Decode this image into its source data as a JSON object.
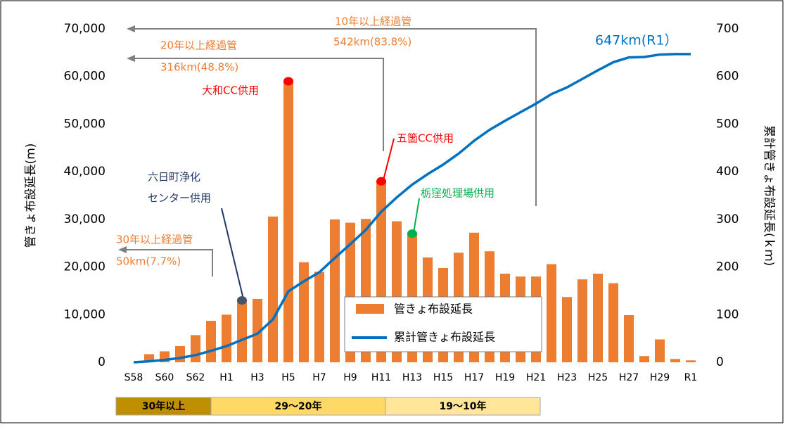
{
  "chart_data": {
    "type": "bar-line",
    "categories": [
      "S58",
      null,
      "S60",
      null,
      "S62",
      null,
      "H1",
      null,
      "H3",
      null,
      "H5",
      null,
      "H7",
      null,
      "H9",
      null,
      "H11",
      null,
      "H13",
      null,
      "H15",
      null,
      "H17",
      null,
      "H19",
      null,
      "H21",
      null,
      "H23",
      null,
      "H25",
      null,
      "H27",
      null,
      "H29",
      null,
      "R1"
    ],
    "series": [
      {
        "name": "管きょ布設延長",
        "color": "#ed7d31",
        "type": "bar",
        "values": [
          0,
          1700,
          2300,
          3400,
          5700,
          8700,
          10000,
          13000,
          13300,
          30600,
          59000,
          21000,
          19000,
          30000,
          29300,
          30100,
          38000,
          29600,
          27000,
          22000,
          19800,
          23000,
          27200,
          23300,
          18600,
          18000,
          18000,
          20600,
          13700,
          17400,
          18600,
          16600,
          9900,
          1300,
          4800,
          700,
          400
        ]
      },
      {
        "name": "累計管きょ布設延長",
        "color": "#0070c0",
        "type": "line",
        "axis": "y2",
        "values": [
          0,
          2,
          5,
          9,
          15,
          24,
          34,
          47,
          60,
          90,
          149,
          170,
          189,
          219,
          248,
          278,
          316,
          346,
          373,
          395,
          415,
          438,
          465,
          488,
          507,
          525,
          543,
          563,
          577,
          595,
          613,
          630,
          640,
          641,
          646,
          647,
          647
        ]
      }
    ],
    "ylabel": "管きょ布設延長(m)",
    "y2label": "累計管きょ布設延長(ｋｍ)",
    "ylim": [
      0,
      70000
    ],
    "yticks": [
      0,
      {
        "value": 10000,
        "label": "10,000"
      },
      {
        "value": 20000,
        "label": "20,000"
      },
      {
        "value": 30000,
        "label": "30,000"
      },
      {
        "value": 40000,
        "label": "40,000"
      },
      {
        "value": 50000,
        "label": "50,000"
      },
      {
        "value": 60000,
        "label": "60,000"
      },
      {
        "value": 70000,
        "label": "70,000"
      }
    ],
    "y2lim": [
      0,
      700
    ],
    "y2ticks": [
      0,
      100,
      200,
      300,
      400,
      500,
      600,
      700
    ],
    "annotations": [
      "10年以上経過管",
      "542km(83.8%)",
      "20年以上経過管",
      "316km(48.8%)",
      "30年以上経過管",
      "50km(7.7%)",
      "647km(R1）",
      "大和CC供用",
      "五箇CC供用",
      "六日町浄化",
      "センター供用",
      "栃窪処理場供用"
    ],
    "periods": [
      "30年以上",
      "29〜20年",
      "19〜10年"
    ]
  }
}
